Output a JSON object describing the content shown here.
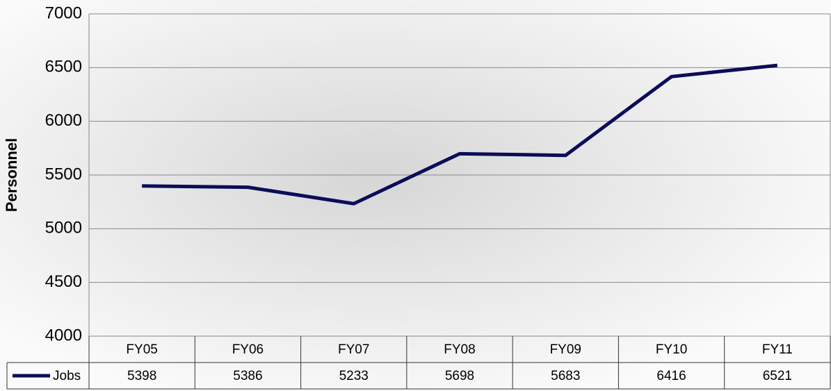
{
  "chart_data": {
    "type": "line",
    "y_label": "Personnel",
    "categories": [
      "FY05",
      "FY06",
      "FY07",
      "FY08",
      "FY09",
      "FY10",
      "FY11"
    ],
    "series": [
      {
        "name": "Jobs",
        "color": "#0c0c5a",
        "values": [
          5398,
          5386,
          5233,
          5698,
          5683,
          6416,
          6521
        ]
      }
    ],
    "ylim": [
      4000,
      7000
    ],
    "yticks": [
      4000,
      4500,
      5000,
      5500,
      6000,
      6500,
      7000
    ],
    "grid": true
  }
}
